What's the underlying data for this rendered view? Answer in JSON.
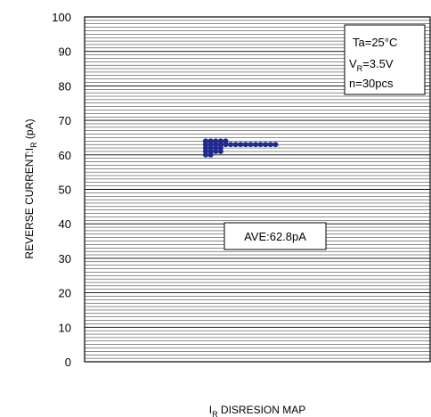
{
  "chart_data": {
    "type": "scatter",
    "title": "",
    "xlabel": {
      "main": "I",
      "sub": "R",
      "rest": " DISRESION MAP"
    },
    "ylabel": {
      "main": "REVERSE CURRENT:I",
      "sub": "R",
      "rest": " (pA)"
    },
    "ylim": [
      0,
      100
    ],
    "yticks": [
      0,
      10,
      20,
      30,
      40,
      50,
      60,
      70,
      80,
      90,
      100
    ],
    "grid": "horizontal",
    "conditions": {
      "ta": "Ta=25°C",
      "vr": {
        "main": "V",
        "sub": "R",
        "rest": "=3.5V"
      },
      "n": "n=30pcs"
    },
    "average_label": "AVE:62.8pA",
    "average_value": 62.8,
    "marker_color": "#1f2a8c",
    "points": [
      {
        "rank": 1,
        "y": 60
      },
      {
        "rank": 1,
        "y": 61
      },
      {
        "rank": 2,
        "y": 60
      },
      {
        "rank": 2,
        "y": 61
      },
      {
        "rank": 3,
        "y": 61
      },
      {
        "rank": 4,
        "y": 61
      },
      {
        "rank": 1,
        "y": 62
      },
      {
        "rank": 2,
        "y": 62
      },
      {
        "rank": 3,
        "y": 62
      },
      {
        "rank": 4,
        "y": 62
      },
      {
        "rank": 1,
        "y": 63
      },
      {
        "rank": 2,
        "y": 63
      },
      {
        "rank": 3,
        "y": 63
      },
      {
        "rank": 4,
        "y": 63
      },
      {
        "rank": 5,
        "y": 63
      },
      {
        "rank": 6,
        "y": 63
      },
      {
        "rank": 7,
        "y": 63
      },
      {
        "rank": 8,
        "y": 63
      },
      {
        "rank": 9,
        "y": 63
      },
      {
        "rank": 10,
        "y": 63
      },
      {
        "rank": 11,
        "y": 63
      },
      {
        "rank": 12,
        "y": 63
      },
      {
        "rank": 13,
        "y": 63
      },
      {
        "rank": 14,
        "y": 63
      },
      {
        "rank": 15,
        "y": 63
      },
      {
        "rank": 1,
        "y": 64
      },
      {
        "rank": 2,
        "y": 64
      },
      {
        "rank": 3,
        "y": 64
      },
      {
        "rank": 4,
        "y": 64
      },
      {
        "rank": 5,
        "y": 64
      }
    ]
  }
}
